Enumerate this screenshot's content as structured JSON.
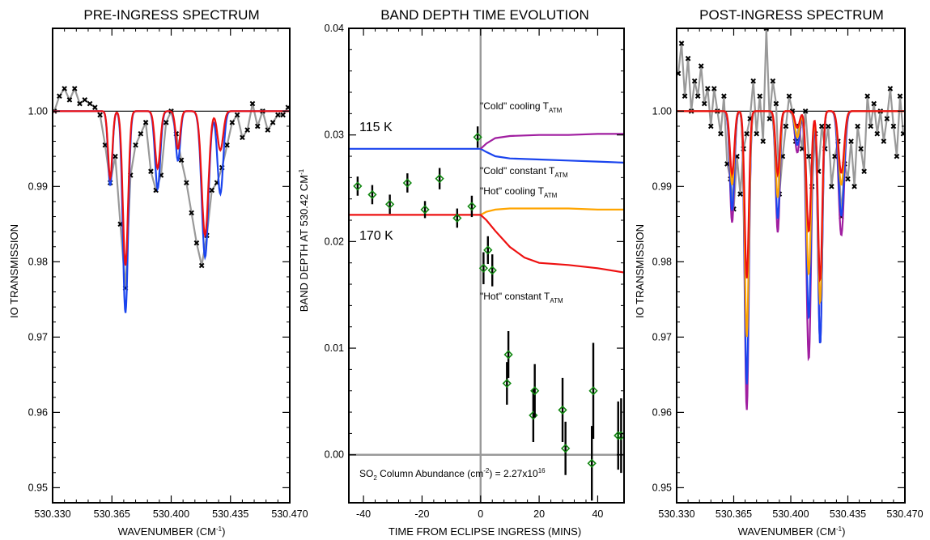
{
  "colors": {
    "red": "#ee1111",
    "blue": "#1a44ee",
    "orange": "#ffa500",
    "purple": "#a01ea0",
    "green": "#118811",
    "gray": "#999999",
    "black": "#000000"
  },
  "chart_data": [
    {
      "type": "line",
      "title": "PRE-INGRESS SPECTRUM",
      "xlabel": "WAVENUMBER (CM",
      "xlabel_sup": "-1",
      "xlabel_tail": ")",
      "ylabel": "IO TRANSMISSION",
      "xlim": [
        530.33,
        530.47
      ],
      "ylim": [
        0.948,
        1.011
      ],
      "xticks": [
        530.33,
        530.365,
        530.4,
        530.435,
        530.47
      ],
      "xticklabels": [
        "530.330",
        "530.365",
        "530.400",
        "530.435",
        "530.470"
      ],
      "yticks": [
        0.95,
        0.96,
        0.97,
        0.98,
        0.99,
        1.0
      ],
      "yticklabels": [
        "0.95",
        "0.96",
        "0.97",
        "0.98",
        "0.99",
        "1.00"
      ],
      "reference_line": 1.0,
      "lines": [
        {
          "color": "blue",
          "dips": [
            [
              530.364,
              0.0099,
              0.0018
            ],
            [
              530.373,
              0.0268,
              0.0022
            ],
            [
              530.392,
              0.0103,
              0.0022
            ],
            [
              530.404,
              0.0066,
              0.0019
            ],
            [
              530.42,
              0.0194,
              0.0028
            ],
            [
              530.429,
              0.011,
              0.0024
            ]
          ]
        },
        {
          "color": "red",
          "dips": [
            [
              530.364,
              0.0089,
              0.0018
            ],
            [
              530.373,
              0.0205,
              0.0022
            ],
            [
              530.392,
              0.0076,
              0.0022
            ],
            [
              530.404,
              0.005,
              0.0019
            ],
            [
              530.42,
              0.0165,
              0.0028
            ],
            [
              530.429,
              0.0052,
              0.0024
            ]
          ]
        }
      ],
      "data_series": {
        "x": [
          530.331,
          530.334,
          530.337,
          530.34,
          530.343,
          530.346,
          530.349,
          530.352,
          530.355,
          530.358,
          530.361,
          530.364,
          530.367,
          530.37,
          530.373,
          530.376,
          530.379,
          530.382,
          530.385,
          530.388,
          530.391,
          530.394,
          530.397,
          530.4,
          530.403,
          530.406,
          530.409,
          530.412,
          530.415,
          530.418,
          530.421,
          530.424,
          530.427,
          530.43,
          530.433,
          530.436,
          530.439,
          530.442,
          530.445,
          530.448,
          530.451,
          530.454,
          530.457,
          530.46,
          530.463,
          530.466,
          530.469
        ],
        "y": [
          1.0,
          1.002,
          1.003,
          1.0015,
          1.003,
          1.001,
          1.0015,
          1.001,
          1.0005,
          0.9995,
          0.9955,
          0.9905,
          0.994,
          0.985,
          0.9765,
          0.9915,
          0.9955,
          0.997,
          0.9985,
          0.992,
          0.9895,
          0.9915,
          0.9985,
          1.0,
          0.997,
          0.9935,
          0.9905,
          0.9865,
          0.9825,
          0.9795,
          0.9835,
          0.9895,
          0.9905,
          0.9925,
          0.9955,
          0.9985,
          0.9995,
          0.9965,
          0.9975,
          1.001,
          0.998,
          1.0,
          0.9975,
          0.9985,
          0.9995,
          0.9995,
          1.0005
        ]
      }
    },
    {
      "type": "scatter",
      "title": "BAND DEPTH TIME EVOLUTION",
      "xlabel": "TIME FROM ECLIPSE INGRESS (MINS)",
      "ylabel": "BAND DEPTH AT 530.42 CM",
      "ylabel_sup": "-1",
      "xlim": [
        -45,
        49
      ],
      "ylim": [
        -0.0045,
        0.04
      ],
      "xticks": [
        -40,
        -20,
        0,
        20,
        40
      ],
      "xticklabels": [
        "-40",
        "-20",
        "0",
        "20",
        "40"
      ],
      "yticks": [
        0.0,
        0.01,
        0.02,
        0.03,
        0.04
      ],
      "yticklabels": [
        "0.00",
        "0.01",
        "0.02",
        "0.03",
        "0.04"
      ],
      "reference_lines": {
        "x": 0,
        "y": 0
      },
      "series": [
        {
          "color": "blue",
          "x": [
            -45,
            -10,
            -5,
            -2,
            0,
            2,
            5,
            10,
            20,
            30,
            40,
            49
          ],
          "y": [
            0.0287,
            0.0287,
            0.0287,
            0.0287,
            0.0287,
            0.0284,
            0.028,
            0.0278,
            0.0277,
            0.0276,
            0.0275,
            0.0274
          ]
        },
        {
          "color": "purple",
          "x": [
            0,
            2,
            5,
            10,
            20,
            30,
            40,
            49
          ],
          "y": [
            0.0287,
            0.0292,
            0.0297,
            0.0299,
            0.03,
            0.03,
            0.0301,
            0.0301
          ]
        },
        {
          "color": "orange",
          "x": [
            0,
            2,
            5,
            10,
            20,
            30,
            40,
            49
          ],
          "y": [
            0.0225,
            0.0228,
            0.023,
            0.0231,
            0.0231,
            0.0231,
            0.023,
            0.023
          ]
        },
        {
          "color": "red",
          "x": [
            -45,
            -10,
            -5,
            0,
            2,
            5,
            10,
            15,
            20,
            30,
            40,
            49
          ],
          "y": [
            0.0225,
            0.0225,
            0.0225,
            0.0225,
            0.022,
            0.021,
            0.0195,
            0.0185,
            0.018,
            0.0178,
            0.0175,
            0.0171
          ]
        }
      ],
      "points": {
        "x": [
          -42,
          -37,
          -31,
          -25,
          -19,
          -14,
          -8,
          -3,
          -1,
          1,
          2.5,
          4,
          9,
          9.5,
          18,
          18.5,
          28,
          29,
          38,
          38.5,
          47,
          48
        ],
        "y": [
          0.0252,
          0.0244,
          0.0235,
          0.0255,
          0.023,
          0.0259,
          0.0222,
          0.0233,
          0.0298,
          0.0175,
          0.0192,
          0.0173,
          0.0067,
          0.0094,
          0.0037,
          0.006,
          0.0042,
          0.0006,
          -0.0008,
          0.006,
          0.0018,
          0.0018
        ],
        "err": [
          0.0009,
          0.0009,
          0.0009,
          0.0009,
          0.0008,
          0.001,
          0.0009,
          0.001,
          0.001,
          0.0015,
          0.0013,
          0.0015,
          0.002,
          0.0022,
          0.0025,
          0.0025,
          0.003,
          0.0025,
          0.0035,
          0.0045,
          0.0032,
          0.0035
        ]
      },
      "labels": {
        "k115": "115 K",
        "k170": "170 K",
        "cold_cooling": "\"Cold\" cooling T",
        "cold_constant": "\"Cold\" constant T",
        "hot_cooling": "\"Hot\" cooling T",
        "hot_constant": "\"Hot\" constant T",
        "sub": "ATM",
        "so2_a": "SO",
        "so2_sub": "2",
        "so2_b": " Column Abundance (cm",
        "so2_sup": "-2",
        "so2_c": ") = 2.27x10",
        "so2_exp": "16"
      }
    },
    {
      "type": "line",
      "title": "POST-INGRESS SPECTRUM",
      "xlabel": "WAVENUMBER (CM",
      "xlabel_sup": "-1",
      "xlabel_tail": ")",
      "ylabel": "IO TRANSMISSION",
      "xlim": [
        530.33,
        530.47
      ],
      "ylim": [
        0.948,
        1.011
      ],
      "xticks": [
        530.33,
        530.365,
        530.4,
        530.435,
        530.47
      ],
      "xticklabels": [
        "530.330",
        "530.365",
        "530.400",
        "530.435",
        "530.470"
      ],
      "yticks": [
        0.95,
        0.96,
        0.97,
        0.98,
        0.99,
        1.0
      ],
      "yticklabels": [
        "0.95",
        "0.96",
        "0.97",
        "0.98",
        "0.99",
        "1.00"
      ],
      "reference_line": 1.0,
      "lines": [
        {
          "color": "purple",
          "dips": [
            [
              530.364,
              0.0148,
              0.0019
            ],
            [
              530.373,
              0.0397,
              0.0018
            ],
            [
              530.392,
              0.0161,
              0.0018
            ],
            [
              530.404,
              0.0055,
              0.002
            ],
            [
              530.411,
              0.033,
              0.002
            ],
            [
              530.418,
              0.031,
              0.0018
            ],
            [
              530.431,
              0.0165,
              0.0024
            ]
          ]
        },
        {
          "color": "blue",
          "dips": [
            [
              530.364,
              0.0132,
              0.0019
            ],
            [
              530.373,
              0.0363,
              0.0018
            ],
            [
              530.392,
              0.0143,
              0.0018
            ],
            [
              530.404,
              0.0045,
              0.002
            ],
            [
              530.411,
              0.0275,
              0.002
            ],
            [
              530.418,
              0.031,
              0.0018
            ],
            [
              530.431,
              0.0139,
              0.0024
            ]
          ]
        },
        {
          "color": "orange",
          "dips": [
            [
              530.364,
              0.0098,
              0.0019
            ],
            [
              530.373,
              0.03,
              0.0018
            ],
            [
              530.392,
              0.0115,
              0.0018
            ],
            [
              530.404,
              0.0035,
              0.002
            ],
            [
              530.411,
              0.0217,
              0.002
            ],
            [
              530.418,
              0.0255,
              0.0018
            ],
            [
              530.431,
              0.0098,
              0.0024
            ]
          ]
        },
        {
          "color": "red",
          "dips": [
            [
              530.364,
              0.0084,
              0.0019
            ],
            [
              530.373,
              0.0222,
              0.0018
            ],
            [
              530.392,
              0.0084,
              0.0018
            ],
            [
              530.404,
              0.0022,
              0.002
            ],
            [
              530.411,
              0.016,
              0.002
            ],
            [
              530.418,
              0.0225,
              0.0018
            ],
            [
              530.431,
              0.0082,
              0.0024
            ]
          ]
        }
      ],
      "data_series": {
        "x": [
          530.331,
          530.333,
          530.335,
          530.337,
          530.339,
          530.341,
          530.343,
          530.345,
          530.347,
          530.349,
          530.351,
          530.353,
          530.355,
          530.357,
          530.359,
          530.361,
          530.363,
          530.365,
          530.367,
          530.369,
          530.371,
          530.373,
          530.375,
          530.377,
          530.379,
          530.381,
          530.383,
          530.385,
          530.387,
          530.389,
          530.391,
          530.393,
          530.395,
          530.397,
          530.399,
          530.401,
          530.403,
          530.405,
          530.407,
          530.409,
          530.411,
          530.413,
          530.415,
          530.417,
          530.419,
          530.421,
          530.423,
          530.425,
          530.427,
          530.429,
          530.431,
          530.433,
          530.435,
          530.437,
          530.439,
          530.441,
          530.443,
          530.445,
          530.447,
          530.449,
          530.451,
          530.453,
          530.455,
          530.457,
          530.459,
          530.461,
          530.463,
          530.465,
          530.467,
          530.469
        ],
        "y": [
          1.005,
          1.009,
          1.002,
          1.007,
          1.0,
          1.004,
          1.002,
          1.006,
          1.001,
          1.003,
          0.998,
          1.003,
          1.0,
          0.997,
          1.002,
          0.993,
          0.991,
          0.987,
          0.994,
          0.989,
          0.995,
          0.997,
          0.999,
          1.004,
          0.997,
          1.002,
          0.996,
          1.011,
          0.999,
          1.004,
          1.001,
          0.989,
          0.994,
          0.998,
          1.002,
          1.0,
          0.996,
          0.998,
          0.995,
          1.0,
          0.994,
          0.99,
          0.997,
          0.992,
          0.998,
          0.995,
          0.998,
          0.99,
          0.994,
          0.996,
          0.986,
          0.993,
          0.991,
          0.996,
          0.99,
          0.998,
          0.995,
          0.992,
          1.002,
          0.998,
          1.001,
          0.997,
          1.0,
          0.996,
          0.999,
          1.003,
          0.998,
          0.994,
          1.002,
          0.997
        ]
      }
    }
  ]
}
